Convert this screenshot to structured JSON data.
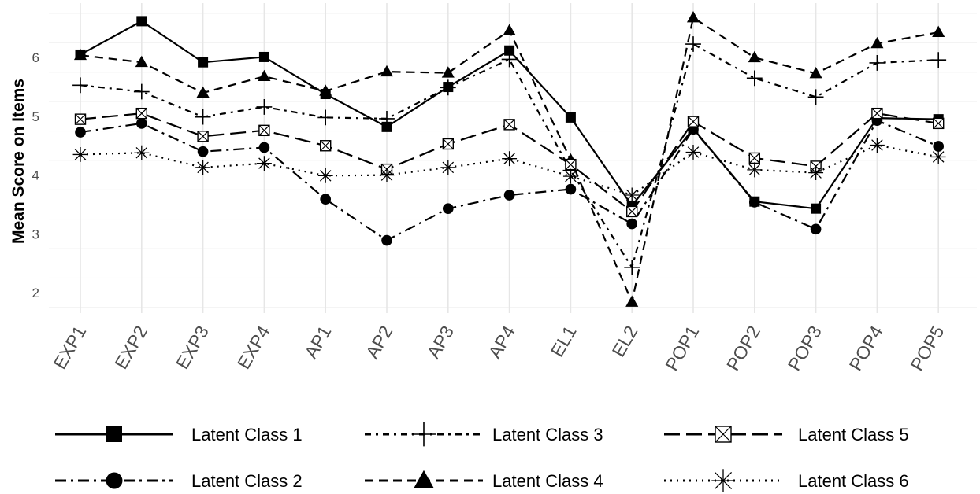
{
  "chart_data": {
    "type": "line",
    "title": "",
    "xlabel": "",
    "ylabel": "Mean Score on Items",
    "categories": [
      "EXP1",
      "EXP2",
      "EXP3",
      "EXP4",
      "AP1",
      "AP2",
      "AP3",
      "AP4",
      "EL1",
      "EL2",
      "POP1",
      "POP2",
      "POP3",
      "POP4",
      "POP5"
    ],
    "yticks": [
      2,
      3,
      4,
      5,
      6
    ],
    "ylim": [
      1.6,
      6.75
    ],
    "grid": true,
    "legend_position": "bottom",
    "series": [
      {
        "name": "Latent Class 1",
        "marker": "square",
        "line": "solid",
        "color": "#000000",
        "values": [
          6.05,
          6.62,
          5.92,
          6.01,
          5.38,
          4.82,
          5.5,
          6.12,
          4.98,
          3.48,
          4.79,
          3.55,
          3.43,
          4.97,
          4.95
        ]
      },
      {
        "name": "Latent Class 2",
        "marker": "circle",
        "line": "longdash-dot",
        "color": "#000000",
        "values": [
          4.73,
          4.88,
          4.4,
          4.47,
          3.59,
          2.89,
          3.43,
          3.66,
          3.76,
          3.17,
          4.78,
          3.54,
          3.08,
          4.93,
          4.49
        ]
      },
      {
        "name": "Latent Class 3",
        "marker": "plus",
        "line": "dash-dot",
        "color": "#000000",
        "values": [
          5.53,
          5.42,
          4.99,
          5.16,
          4.98,
          4.96,
          5.49,
          5.97,
          4.08,
          2.43,
          6.23,
          5.65,
          5.33,
          5.91,
          5.96
        ]
      },
      {
        "name": "Latent Class 4",
        "marker": "triangle",
        "line": "dashed",
        "color": "#000000",
        "values": [
          6.04,
          5.92,
          5.4,
          5.68,
          5.43,
          5.76,
          5.74,
          6.46,
          4.26,
          1.84,
          6.68,
          6.0,
          5.73,
          6.24,
          6.43
        ]
      },
      {
        "name": "Latent Class 5",
        "marker": "square-cross",
        "line": "longdash",
        "color": "#000000",
        "values": [
          4.95,
          5.05,
          4.66,
          4.76,
          4.5,
          4.1,
          4.53,
          4.86,
          4.18,
          3.38,
          4.91,
          4.29,
          4.15,
          5.05,
          4.88
        ]
      },
      {
        "name": "Latent Class 6",
        "marker": "asterisk",
        "line": "dotted",
        "color": "#000000",
        "values": [
          4.35,
          4.38,
          4.13,
          4.2,
          3.99,
          4.0,
          4.13,
          4.28,
          3.98,
          3.66,
          4.39,
          4.09,
          4.04,
          4.51,
          4.31
        ]
      }
    ]
  }
}
